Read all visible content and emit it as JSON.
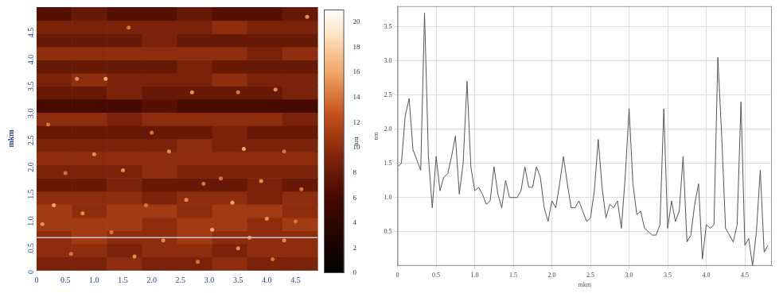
{
  "chart_data": [
    {
      "type": "heatmap",
      "y_label": "mkm",
      "xlim": [
        0,
        4.88
      ],
      "ylim": [
        0,
        4.88
      ],
      "xticks": [
        0,
        0.5,
        {
          "value": 1,
          "label": "1.0"
        },
        1.5,
        {
          "value": 2,
          "label": "2.0"
        },
        2.5,
        {
          "value": 3,
          "label": "3.0"
        },
        3.5,
        {
          "value": 4,
          "label": "4.0"
        },
        4.5
      ],
      "yticks": [
        0,
        0.5,
        {
          "value": 1,
          "label": "1.0"
        },
        1.5,
        {
          "value": 2,
          "label": "2.0"
        },
        2.5,
        {
          "value": 3,
          "label": "3.0"
        },
        3.5,
        {
          "value": 4,
          "label": "4.0"
        },
        4.5
      ],
      "grid": false,
      "cells": [
        [
          9,
          9,
          10,
          9,
          9,
          10,
          9,
          9
        ],
        [
          10,
          10,
          9,
          10,
          10,
          9,
          10,
          10
        ],
        [
          10,
          11,
          10,
          10,
          11,
          10,
          10,
          10
        ],
        [
          11,
          11,
          11,
          10,
          11,
          11,
          10,
          11
        ],
        [
          11,
          10,
          11,
          11,
          10,
          11,
          11,
          10
        ],
        [
          10,
          10,
          10,
          9,
          10,
          10,
          9,
          10
        ],
        [
          8,
          8,
          9,
          8,
          8,
          8,
          9,
          8
        ],
        [
          9,
          9,
          9,
          10,
          9,
          9,
          9,
          9
        ],
        [
          10,
          10,
          10,
          10,
          10,
          10,
          10,
          10
        ],
        [
          9,
          9,
          9,
          9,
          10,
          9,
          9,
          9
        ],
        [
          8,
          8,
          8,
          8,
          8,
          9,
          8,
          8
        ],
        [
          10,
          10,
          9,
          10,
          10,
          10,
          10,
          9
        ],
        [
          6,
          6,
          6,
          7,
          6,
          6,
          6,
          6
        ],
        [
          8,
          8,
          9,
          8,
          8,
          8,
          8,
          9
        ],
        [
          9,
          10,
          9,
          9,
          9,
          10,
          9,
          9
        ],
        [
          8,
          8,
          8,
          8,
          9,
          8,
          8,
          8
        ],
        [
          10,
          10,
          10,
          10,
          10,
          10,
          9,
          10
        ],
        [
          8,
          8,
          8,
          9,
          8,
          8,
          8,
          8
        ],
        [
          9,
          9,
          9,
          9,
          9,
          10,
          9,
          9
        ],
        [
          7,
          8,
          7,
          7,
          8,
          7,
          7,
          8
        ]
      ],
      "spots": [
        [
          1.2,
          3.55,
          16
        ],
        [
          2.7,
          3.3,
          15
        ],
        [
          3.5,
          3.3,
          14
        ],
        [
          4.15,
          3.35,
          15
        ],
        [
          4.7,
          4.7,
          15
        ],
        [
          1.6,
          4.5,
          14
        ],
        [
          0.7,
          3.55,
          15
        ],
        [
          0.2,
          2.7,
          14
        ],
        [
          2.3,
          2.2,
          15
        ],
        [
          2.0,
          2.55,
          14
        ],
        [
          3.6,
          2.25,
          16
        ],
        [
          4.3,
          2.2,
          14
        ],
        [
          1.0,
          2.15,
          15
        ],
        [
          0.5,
          1.8,
          14
        ],
        [
          1.5,
          1.85,
          15
        ],
        [
          2.9,
          1.6,
          14
        ],
        [
          3.9,
          1.65,
          15
        ],
        [
          3.2,
          1.7,
          14
        ],
        [
          4.6,
          1.5,
          14
        ],
        [
          0.3,
          1.2,
          16
        ],
        [
          0.8,
          1.05,
          15
        ],
        [
          1.9,
          1.2,
          14
        ],
        [
          2.6,
          1.3,
          15
        ],
        [
          3.4,
          1.25,
          16
        ],
        [
          4.0,
          0.95,
          15
        ],
        [
          4.5,
          0.9,
          14
        ],
        [
          0.1,
          0.85,
          15
        ],
        [
          1.3,
          0.7,
          14
        ],
        [
          2.2,
          0.55,
          15
        ],
        [
          3.05,
          0.75,
          16
        ],
        [
          3.7,
          0.6,
          15
        ],
        [
          4.3,
          0.55,
          15
        ],
        [
          0.6,
          0.3,
          14
        ],
        [
          1.7,
          0.25,
          15
        ],
        [
          2.8,
          0.15,
          14
        ],
        [
          3.5,
          0.4,
          15
        ],
        [
          4.1,
          0.2,
          14
        ]
      ],
      "profile_y": 0.6,
      "colorbar": {
        "label": "nm",
        "range": [
          0,
          21
        ],
        "ticks": [
          0,
          2,
          4,
          6,
          8,
          10,
          12,
          14,
          16,
          18,
          20
        ]
      }
    },
    {
      "type": "line",
      "x_label": "mkm",
      "y_label": "nm",
      "color": "#555555",
      "grid": true,
      "xlim": [
        0,
        4.85
      ],
      "ylim": [
        0,
        3.8
      ],
      "xticks": [
        0,
        0.5,
        {
          "value": 1,
          "label": "1.0"
        },
        1.5,
        {
          "value": 2,
          "label": "2.0"
        },
        2.5,
        {
          "value": 3,
          "label": "3.0"
        },
        3.5,
        {
          "value": 4,
          "label": "4.0"
        },
        4.5
      ],
      "yticks": [
        0.5,
        {
          "value": 1,
          "label": "1.0"
        },
        1.5,
        {
          "value": 2,
          "label": "2.0"
        },
        2.5,
        {
          "value": 3,
          "label": "3.0"
        },
        3.5
      ],
      "x": [
        0,
        0.05,
        0.1,
        0.15,
        0.2,
        0.25,
        0.3,
        0.35,
        0.4,
        0.45,
        0.5,
        0.55,
        0.6,
        0.65,
        0.7,
        0.75,
        0.8,
        0.85,
        0.9,
        0.95,
        1.0,
        1.05,
        1.1,
        1.15,
        1.2,
        1.25,
        1.3,
        1.35,
        1.4,
        1.45,
        1.5,
        1.55,
        1.6,
        1.65,
        1.7,
        1.75,
        1.8,
        1.85,
        1.9,
        1.95,
        2.0,
        2.05,
        2.1,
        2.15,
        2.2,
        2.25,
        2.3,
        2.35,
        2.4,
        2.45,
        2.5,
        2.55,
        2.6,
        2.65,
        2.7,
        2.75,
        2.8,
        2.85,
        2.9,
        2.95,
        3.0,
        3.05,
        3.1,
        3.15,
        3.2,
        3.25,
        3.3,
        3.35,
        3.4,
        3.45,
        3.5,
        3.55,
        3.6,
        3.65,
        3.7,
        3.75,
        3.8,
        3.85,
        3.9,
        3.95,
        4.0,
        4.05,
        4.1,
        4.15,
        4.2,
        4.25,
        4.3,
        4.35,
        4.4,
        4.45,
        4.5,
        4.55,
        4.6,
        4.65,
        4.7,
        4.75,
        4.8
      ],
      "values": [
        1.45,
        1.5,
        2.2,
        2.45,
        1.7,
        1.55,
        1.4,
        3.7,
        1.6,
        0.85,
        1.6,
        1.1,
        1.3,
        1.35,
        1.6,
        1.9,
        1.05,
        1.5,
        2.7,
        1.45,
        1.1,
        1.15,
        1.05,
        0.9,
        0.95,
        1.45,
        1.05,
        0.85,
        1.25,
        1.0,
        1.0,
        1.0,
        1.1,
        1.45,
        1.15,
        1.15,
        1.45,
        1.3,
        0.85,
        0.65,
        0.95,
        0.85,
        1.2,
        1.6,
        1.2,
        0.85,
        0.85,
        0.95,
        0.8,
        0.65,
        0.7,
        1.1,
        1.85,
        1.15,
        0.7,
        0.9,
        0.85,
        0.95,
        0.55,
        1.3,
        2.3,
        1.2,
        0.75,
        0.8,
        0.55,
        0.5,
        0.45,
        0.45,
        0.6,
        2.3,
        0.55,
        0.95,
        0.65,
        0.8,
        1.6,
        0.35,
        0.45,
        0.9,
        1.2,
        0.1,
        0.6,
        0.55,
        0.6,
        3.05,
        1.9,
        0.55,
        0.45,
        0.35,
        0.6,
        2.4,
        0.3,
        0.4,
        0.0,
        0.5,
        1.4,
        0.2,
        0.3
      ]
    }
  ]
}
